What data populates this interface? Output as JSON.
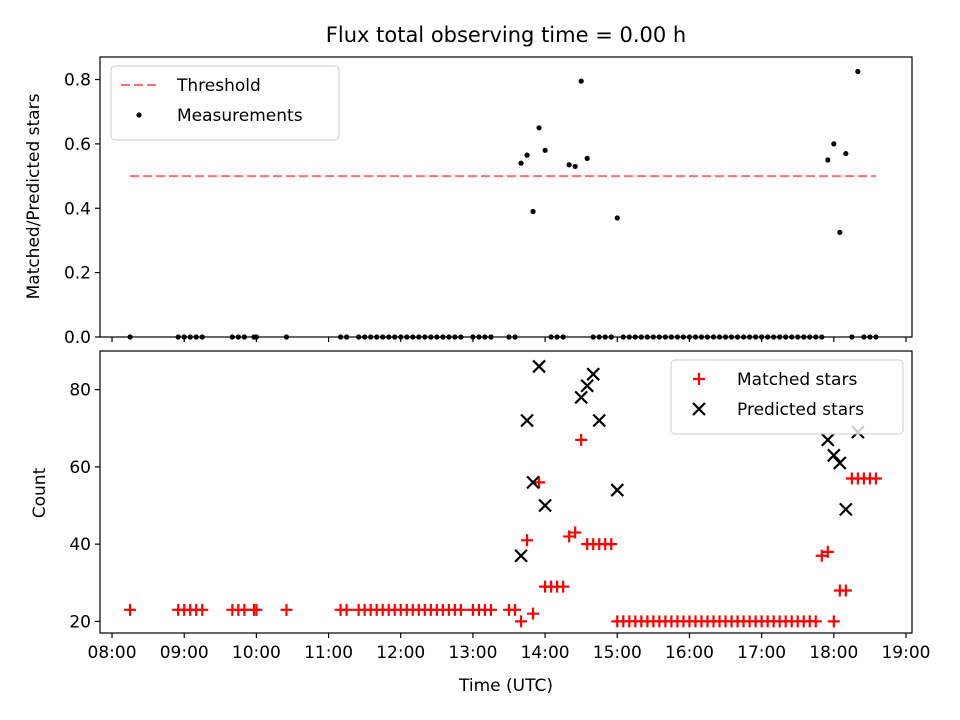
{
  "chart_data": [
    {
      "type": "scatter",
      "title": "Flux total observing time = 0.00 h",
      "xlabel": "",
      "ylabel": "Matched/Predicted stars",
      "xlim": [
        "07:50",
        "19:05"
      ],
      "ylim": [
        0,
        0.87
      ],
      "yticks": [
        "0.0",
        "0.2",
        "0.4",
        "0.6",
        "0.8"
      ],
      "legend_position": "top-left",
      "threshold": {
        "name": "Threshold",
        "value": 0.5,
        "x_start": "08:15",
        "x_end": "18:35",
        "color": "#ff6f6f"
      },
      "series": [
        {
          "name": "Measurements",
          "color": "#000000",
          "x": [
            "08:15",
            "08:55",
            "09:00",
            "09:05",
            "09:10",
            "09:15",
            "09:40",
            "09:45",
            "09:50",
            "09:58",
            "10:00",
            "10:25",
            "11:10",
            "11:15",
            "11:25",
            "11:30",
            "11:35",
            "11:40",
            "11:45",
            "11:50",
            "11:55",
            "12:00",
            "12:05",
            "12:10",
            "12:15",
            "12:20",
            "12:25",
            "12:30",
            "12:35",
            "12:40",
            "12:45",
            "12:50",
            "13:00",
            "13:05",
            "13:10",
            "13:15",
            "13:30",
            "13:35",
            "13:40",
            "13:45",
            "13:50",
            "13:55",
            "14:00",
            "14:05",
            "14:10",
            "14:15",
            "14:20",
            "14:25",
            "14:30",
            "14:35",
            "14:40",
            "14:45",
            "14:50",
            "14:55",
            "15:00",
            "15:05",
            "15:10",
            "15:15",
            "15:20",
            "15:25",
            "15:30",
            "15:35",
            "15:40",
            "15:45",
            "15:50",
            "15:55",
            "16:00",
            "16:05",
            "16:10",
            "16:15",
            "16:20",
            "16:25",
            "16:30",
            "16:35",
            "16:40",
            "16:45",
            "16:50",
            "16:55",
            "17:00",
            "17:05",
            "17:10",
            "17:15",
            "17:20",
            "17:25",
            "17:30",
            "17:35",
            "17:40",
            "17:45",
            "17:50",
            "17:55",
            "18:00",
            "18:05",
            "18:10",
            "18:15",
            "18:20",
            "18:25",
            "18:30",
            "18:35"
          ],
          "y": [
            0,
            0,
            0,
            0,
            0,
            0,
            0,
            0,
            0,
            0,
            0,
            0,
            0,
            0,
            0,
            0,
            0,
            0,
            0,
            0,
            0,
            0,
            0,
            0,
            0,
            0,
            0,
            0,
            0,
            0,
            0,
            0,
            0,
            0,
            0,
            0,
            0,
            0,
            0.54,
            0.565,
            0.39,
            0.65,
            0.58,
            0,
            0,
            0,
            0.535,
            0.53,
            0.795,
            0.555,
            0,
            0,
            0,
            0,
            0.37,
            0,
            0,
            0,
            0,
            0,
            0,
            0,
            0,
            0,
            0,
            0,
            0,
            0,
            0,
            0,
            0,
            0,
            0,
            0,
            0,
            0,
            0,
            0,
            0,
            0,
            0,
            0,
            0,
            0,
            0,
            0,
            0,
            0,
            0,
            0.55,
            0.6,
            0.325,
            0.57,
            0,
            0.825,
            0,
            0,
            0
          ]
        }
      ]
    },
    {
      "type": "scatter",
      "title": "",
      "xlabel": "Time (UTC)",
      "ylabel": "Count",
      "xlim": [
        "07:50",
        "19:05"
      ],
      "ylim": [
        17,
        90
      ],
      "yticks": [
        "20",
        "40",
        "60",
        "80"
      ],
      "xticks": [
        "08:00",
        "09:00",
        "10:00",
        "11:00",
        "12:00",
        "13:00",
        "14:00",
        "15:00",
        "16:00",
        "17:00",
        "18:00",
        "19:00"
      ],
      "legend_position": "top-right",
      "series": [
        {
          "name": "Matched stars",
          "marker": "+",
          "color": "#ff0000",
          "x": [
            "08:15",
            "08:55",
            "09:00",
            "09:05",
            "09:10",
            "09:15",
            "09:40",
            "09:45",
            "09:50",
            "09:58",
            "10:00",
            "10:25",
            "11:10",
            "11:15",
            "11:25",
            "11:30",
            "11:35",
            "11:40",
            "11:45",
            "11:50",
            "11:55",
            "12:00",
            "12:05",
            "12:10",
            "12:15",
            "12:20",
            "12:25",
            "12:30",
            "12:35",
            "12:40",
            "12:45",
            "12:50",
            "13:00",
            "13:05",
            "13:10",
            "13:15",
            "13:30",
            "13:35",
            "13:40",
            "13:45",
            "13:50",
            "13:55",
            "14:00",
            "14:05",
            "14:10",
            "14:15",
            "14:20",
            "14:25",
            "14:30",
            "14:35",
            "14:40",
            "14:45",
            "14:50",
            "14:55",
            "15:00",
            "15:05",
            "15:10",
            "15:15",
            "15:20",
            "15:25",
            "15:30",
            "15:35",
            "15:40",
            "15:45",
            "15:50",
            "15:55",
            "16:00",
            "16:05",
            "16:10",
            "16:15",
            "16:20",
            "16:25",
            "16:30",
            "16:35",
            "16:40",
            "16:45",
            "16:50",
            "16:55",
            "17:00",
            "17:05",
            "17:10",
            "17:15",
            "17:20",
            "17:25",
            "17:30",
            "17:35",
            "17:40",
            "17:45",
            "17:50",
            "17:55",
            "18:00",
            "18:05",
            "18:10",
            "18:15",
            "18:20",
            "18:25",
            "18:30",
            "18:35"
          ],
          "y": [
            23,
            23,
            23,
            23,
            23,
            23,
            23,
            23,
            23,
            23,
            23,
            23,
            23,
            23,
            23,
            23,
            23,
            23,
            23,
            23,
            23,
            23,
            23,
            23,
            23,
            23,
            23,
            23,
            23,
            23,
            23,
            23,
            23,
            23,
            23,
            23,
            23,
            23,
            20,
            41,
            22,
            56,
            29,
            29,
            29,
            29,
            42,
            43,
            67,
            40,
            40,
            40,
            40,
            40,
            20,
            20,
            20,
            20,
            20,
            20,
            20,
            20,
            20,
            20,
            20,
            20,
            20,
            20,
            20,
            20,
            20,
            20,
            20,
            20,
            20,
            20,
            20,
            20,
            20,
            20,
            20,
            20,
            20,
            20,
            20,
            20,
            20,
            20,
            37,
            38,
            20,
            28,
            28,
            57,
            57,
            57,
            57,
            57
          ]
        },
        {
          "name": "Predicted stars",
          "marker": "x",
          "color": "#000000",
          "x": [
            "13:40",
            "13:45",
            "13:50",
            "13:55",
            "14:00",
            "14:30",
            "14:35",
            "14:40",
            "14:45",
            "15:00",
            "17:55",
            "18:00",
            "18:05",
            "18:10",
            "18:20"
          ],
          "y": [
            37,
            72,
            56,
            86,
            50,
            78,
            81,
            84,
            72,
            54,
            67,
            63,
            61,
            49,
            69
          ]
        }
      ]
    }
  ]
}
